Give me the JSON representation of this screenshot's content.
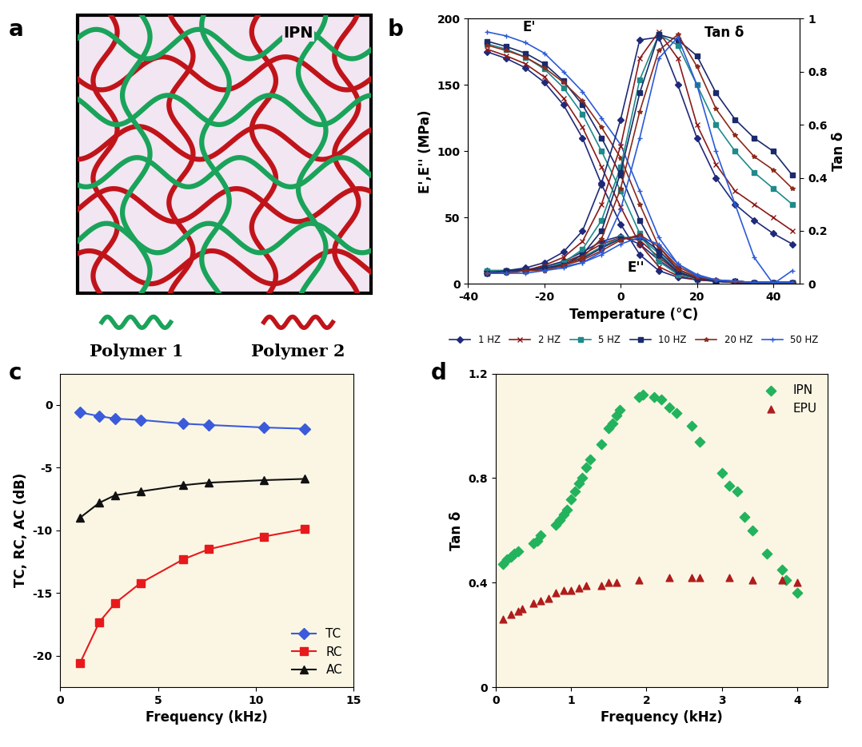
{
  "diagram": {
    "panel_label": "a",
    "network_label": "IPN",
    "polymers": [
      {
        "name": "Polymer 1",
        "color": "#1aa35a"
      },
      {
        "name": "Polymer 2",
        "color": "#c0141a"
      }
    ]
  },
  "chart_data": [
    {
      "type": "line",
      "panel_label": "b",
      "x_label": "Temperature (°C)",
      "y_label": "E',E'' (MPa)",
      "y2_label": "Tan δ",
      "annotations": [
        "E'",
        "Tan δ",
        "E''"
      ],
      "xlim": [
        -40,
        47
      ],
      "xticks": [
        -40,
        -20,
        0,
        20,
        40
      ],
      "ylim": [
        0,
        200
      ],
      "yticks": [
        0,
        50,
        100,
        150,
        200
      ],
      "y2lim": [
        0,
        1
      ],
      "y2ticks": [
        0,
        0.2,
        0.4,
        0.6,
        0.8,
        1
      ],
      "legend": "below",
      "x": [
        -35,
        -30,
        -25,
        -20,
        -15,
        -10,
        -5,
        0,
        5,
        10,
        15,
        20,
        25,
        30,
        35,
        40,
        45
      ],
      "series": [
        {
          "name": "1 HZ",
          "color": "#1f2a7a",
          "marker": "diamond",
          "storage_modulus": [
            175,
            170,
            163,
            152,
            135,
            110,
            75,
            45,
            22,
            10,
            5,
            3,
            2,
            2,
            1,
            1,
            1
          ],
          "loss_modulus": [
            8,
            9,
            10,
            13,
            17,
            24,
            32,
            36,
            30,
            18,
            8,
            4,
            2,
            1,
            1,
            1,
            1
          ],
          "tan_delta": [
            0.05,
            0.05,
            0.06,
            0.08,
            0.12,
            0.2,
            0.38,
            0.62,
            0.92,
            0.93,
            0.75,
            0.55,
            0.4,
            0.3,
            0.24,
            0.19,
            0.15
          ]
        },
        {
          "name": "2 HZ",
          "color": "#8b1a1a",
          "marker": "x",
          "storage_modulus": [
            177,
            172,
            166,
            156,
            140,
            118,
            88,
            58,
            30,
            13,
            6,
            3,
            2,
            2,
            1,
            1,
            1
          ],
          "loss_modulus": [
            8,
            9,
            10,
            12,
            16,
            22,
            30,
            35,
            33,
            20,
            9,
            4,
            2,
            1,
            1,
            1,
            1
          ],
          "tan_delta": [
            0.05,
            0.05,
            0.05,
            0.07,
            0.1,
            0.16,
            0.3,
            0.52,
            0.85,
            0.95,
            0.85,
            0.6,
            0.45,
            0.35,
            0.3,
            0.25,
            0.2
          ]
        },
        {
          "name": "5 HZ",
          "color": "#1f8a8a",
          "marker": "square",
          "storage_modulus": [
            181,
            177,
            171,
            162,
            148,
            128,
            100,
            70,
            38,
            17,
            7,
            4,
            2,
            2,
            1,
            1,
            1
          ],
          "loss_modulus": [
            8,
            9,
            10,
            12,
            15,
            20,
            28,
            35,
            35,
            23,
            10,
            5,
            2,
            1,
            1,
            1,
            1
          ],
          "tan_delta": [
            0.05,
            0.05,
            0.05,
            0.06,
            0.08,
            0.13,
            0.24,
            0.44,
            0.77,
            0.94,
            0.9,
            0.75,
            0.6,
            0.5,
            0.42,
            0.36,
            0.3
          ]
        },
        {
          "name": "10 HZ",
          "color": "#1a2a6c",
          "marker": "square",
          "storage_modulus": [
            183,
            179,
            174,
            166,
            153,
            135,
            110,
            82,
            48,
            22,
            9,
            4,
            2,
            2,
            1,
            1,
            1
          ],
          "loss_modulus": [
            9,
            10,
            11,
            12,
            15,
            19,
            27,
            34,
            36,
            25,
            11,
            5,
            2,
            1,
            1,
            1,
            1
          ],
          "tan_delta": [
            0.04,
            0.05,
            0.05,
            0.06,
            0.07,
            0.11,
            0.2,
            0.42,
            0.72,
            0.94,
            0.92,
            0.86,
            0.72,
            0.62,
            0.55,
            0.5,
            0.41
          ]
        },
        {
          "name": "20 HZ",
          "color": "#8b2a1a",
          "marker": "star",
          "storage_modulus": [
            180,
            176,
            171,
            163,
            152,
            138,
            118,
            95,
            60,
            28,
            11,
            5,
            3,
            2,
            1,
            1,
            1
          ],
          "loss_modulus": [
            9,
            10,
            10,
            12,
            14,
            18,
            25,
            33,
            37,
            28,
            13,
            6,
            3,
            1,
            1,
            1,
            1
          ],
          "tan_delta": [
            0.04,
            0.04,
            0.05,
            0.05,
            0.07,
            0.1,
            0.17,
            0.36,
            0.65,
            0.88,
            0.94,
            0.82,
            0.66,
            0.56,
            0.48,
            0.43,
            0.36
          ]
        },
        {
          "name": "50 HZ",
          "color": "#2a5bd7",
          "marker": "plus",
          "storage_modulus": [
            190,
            187,
            182,
            174,
            160,
            145,
            125,
            105,
            70,
            35,
            15,
            6,
            3,
            2,
            1,
            1,
            1
          ],
          "loss_modulus": [
            9,
            9,
            10,
            11,
            13,
            16,
            22,
            30,
            35,
            30,
            15,
            7,
            3,
            2,
            1,
            1,
            1
          ],
          "tan_delta": [
            0.04,
            0.04,
            0.04,
            0.05,
            0.06,
            0.08,
            0.12,
            0.28,
            0.55,
            0.85,
            0.93,
            0.75,
            0.5,
            0.3,
            0.1,
            0.0,
            0.05
          ]
        }
      ]
    },
    {
      "type": "line",
      "panel_label": "c",
      "x_label": "Frequency (kHz)",
      "y_label": "TC, RC, AC (dB)",
      "xlim": [
        0,
        15
      ],
      "xticks": [
        0,
        5,
        10,
        15
      ],
      "ylim": [
        -22.5,
        2.5
      ],
      "yticks": [
        -20,
        -15,
        -10,
        -5,
        0
      ],
      "legend": "lower right",
      "x": [
        1,
        2,
        2.8,
        4.1,
        6.3,
        7.6,
        10.4,
        12.5
      ],
      "series": [
        {
          "name": "TC",
          "color": "#3b5bdb",
          "marker": "diamond",
          "values": [
            -0.6,
            -0.9,
            -1.1,
            -1.2,
            -1.5,
            -1.6,
            -1.8,
            -1.9
          ]
        },
        {
          "name": "RC",
          "color": "#e8191c",
          "marker": "square",
          "values": [
            -20.6,
            -17.3,
            -15.8,
            -14.2,
            -12.3,
            -11.5,
            -10.5,
            -9.9
          ]
        },
        {
          "name": "AC",
          "color": "#111111",
          "marker": "triangle",
          "values": [
            -9.0,
            -7.8,
            -7.2,
            -6.9,
            -6.4,
            -6.2,
            -6.0,
            -5.9
          ]
        }
      ]
    },
    {
      "type": "scatter",
      "panel_label": "d",
      "x_label": "Frequency (kHz)",
      "y_label": "Tan δ",
      "xlim": [
        0,
        4.4
      ],
      "xticks": [
        0,
        1,
        2,
        3,
        4
      ],
      "ylim": [
        0,
        1.2
      ],
      "yticks": [
        0,
        0.4,
        0.8,
        1.2
      ],
      "legend": "upper right",
      "series": [
        {
          "name": "IPN",
          "color": "#22b35c",
          "marker": "diamond",
          "x": [
            0.1,
            0.15,
            0.2,
            0.25,
            0.3,
            0.5,
            0.55,
            0.6,
            0.8,
            0.85,
            0.9,
            0.95,
            1.0,
            1.05,
            1.1,
            1.15,
            1.2,
            1.25,
            1.4,
            1.5,
            1.55,
            1.6,
            1.65,
            1.9,
            1.95,
            2.1,
            2.2,
            2.3,
            2.4,
            2.6,
            2.7,
            3.0,
            3.1,
            3.2,
            3.3,
            3.4,
            3.6,
            3.8,
            3.85,
            4.0
          ],
          "values": [
            0.47,
            0.49,
            0.5,
            0.51,
            0.52,
            0.55,
            0.56,
            0.58,
            0.62,
            0.64,
            0.66,
            0.68,
            0.72,
            0.75,
            0.78,
            0.8,
            0.84,
            0.87,
            0.93,
            0.99,
            1.01,
            1.04,
            1.06,
            1.11,
            1.12,
            1.11,
            1.1,
            1.07,
            1.05,
            1.0,
            0.94,
            0.82,
            0.77,
            0.75,
            0.65,
            0.6,
            0.51,
            0.45,
            0.41,
            0.36
          ]
        },
        {
          "name": "EPU",
          "color": "#b01c1c",
          "marker": "triangle",
          "x": [
            0.1,
            0.2,
            0.3,
            0.35,
            0.5,
            0.6,
            0.7,
            0.8,
            0.9,
            1.0,
            1.1,
            1.2,
            1.4,
            1.5,
            1.6,
            1.9,
            2.3,
            2.6,
            2.7,
            3.1,
            3.4,
            3.8,
            4.0
          ],
          "values": [
            0.26,
            0.28,
            0.29,
            0.3,
            0.32,
            0.33,
            0.34,
            0.36,
            0.37,
            0.37,
            0.38,
            0.39,
            0.39,
            0.4,
            0.4,
            0.41,
            0.42,
            0.42,
            0.42,
            0.42,
            0.41,
            0.41,
            0.4
          ]
        }
      ]
    }
  ]
}
